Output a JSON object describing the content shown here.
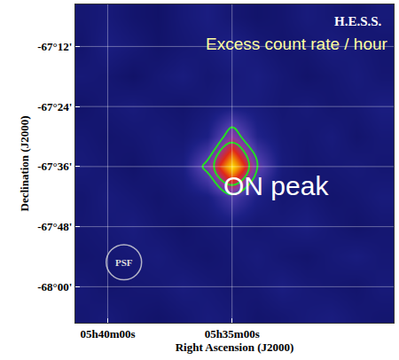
{
  "chart_data": {
    "type": "heatmap",
    "xlabel": "Right Ascension (J2000)",
    "ylabel": "Declination (J2000)",
    "x": [
      341,
      340,
      339,
      338,
      337,
      336,
      335,
      334,
      333,
      332,
      331,
      330,
      329
    ],
    "y": [
      -67.1,
      -67.2,
      -67.3,
      -67.4,
      -67.5,
      -67.6,
      -67.7,
      -67.8,
      -67.9,
      -68.0,
      -68.1
    ],
    "cells": [
      [
        0.12,
        0.15,
        0.1,
        0.08,
        0.14,
        0.18,
        0.12,
        0.09,
        0.11,
        0.16,
        0.13,
        0.1,
        0.15
      ],
      [
        0.1,
        0.18,
        0.14,
        0.09,
        0.12,
        0.15,
        0.2,
        0.14,
        0.1,
        0.12,
        0.17,
        0.14,
        0.11
      ],
      [
        0.14,
        0.12,
        0.08,
        0.13,
        0.17,
        0.12,
        0.15,
        0.18,
        0.13,
        0.09,
        0.12,
        0.16,
        0.12
      ],
      [
        0.09,
        0.13,
        0.16,
        0.12,
        0.1,
        0.14,
        0.18,
        0.16,
        0.12,
        0.15,
        0.11,
        0.13,
        0.18
      ],
      [
        0.13,
        0.1,
        0.12,
        0.15,
        0.13,
        0.2,
        0.5,
        0.22,
        0.14,
        0.12,
        0.16,
        0.1,
        0.14
      ],
      [
        0.15,
        0.12,
        0.09,
        0.14,
        0.18,
        0.45,
        1.0,
        0.42,
        0.16,
        0.11,
        0.13,
        0.15,
        0.12
      ],
      [
        0.11,
        0.16,
        0.13,
        0.1,
        0.14,
        0.18,
        0.35,
        0.2,
        0.12,
        0.14,
        0.1,
        0.12,
        0.16
      ],
      [
        0.12,
        0.14,
        0.17,
        0.12,
        0.09,
        0.13,
        0.15,
        0.12,
        0.15,
        0.18,
        0.13,
        0.09,
        0.12
      ],
      [
        0.1,
        0.12,
        0.14,
        0.16,
        0.12,
        0.1,
        0.13,
        0.16,
        0.12,
        0.1,
        0.14,
        0.17,
        0.13
      ],
      [
        0.14,
        0.1,
        0.12,
        0.13,
        0.17,
        0.14,
        0.11,
        0.13,
        0.18,
        0.14,
        0.12,
        0.1,
        0.15
      ],
      [
        0.12,
        0.15,
        0.11,
        0.09,
        0.12,
        0.16,
        0.14,
        0.1,
        0.12,
        0.15,
        0.17,
        0.13,
        0.11
      ]
    ],
    "color_range": [
      0,
      1
    ],
    "contour_levels": [
      0.4,
      0.6
    ],
    "xlim": [
      341.3,
      328.5
    ],
    "ylim": [
      -68.12,
      -67.06
    ],
    "xticks": [
      {
        "value": 340,
        "label": "05h40m00s"
      },
      {
        "value": 335,
        "label": "05h35m00s"
      }
    ],
    "yticks": [
      {
        "value": -67.2,
        "label": "-67°12'"
      },
      {
        "value": -67.4,
        "label": "-67°24'"
      },
      {
        "value": -67.6,
        "label": "-67°36'"
      },
      {
        "value": -67.8,
        "label": "-67°48'"
      },
      {
        "value": -68.0,
        "label": "-68°00'"
      }
    ],
    "grid": true,
    "annotations": {
      "logo": "H.E.S.S.",
      "map_label": "Excess count rate / hour",
      "peak_label": "ON peak",
      "psf_label": "PSF"
    }
  }
}
